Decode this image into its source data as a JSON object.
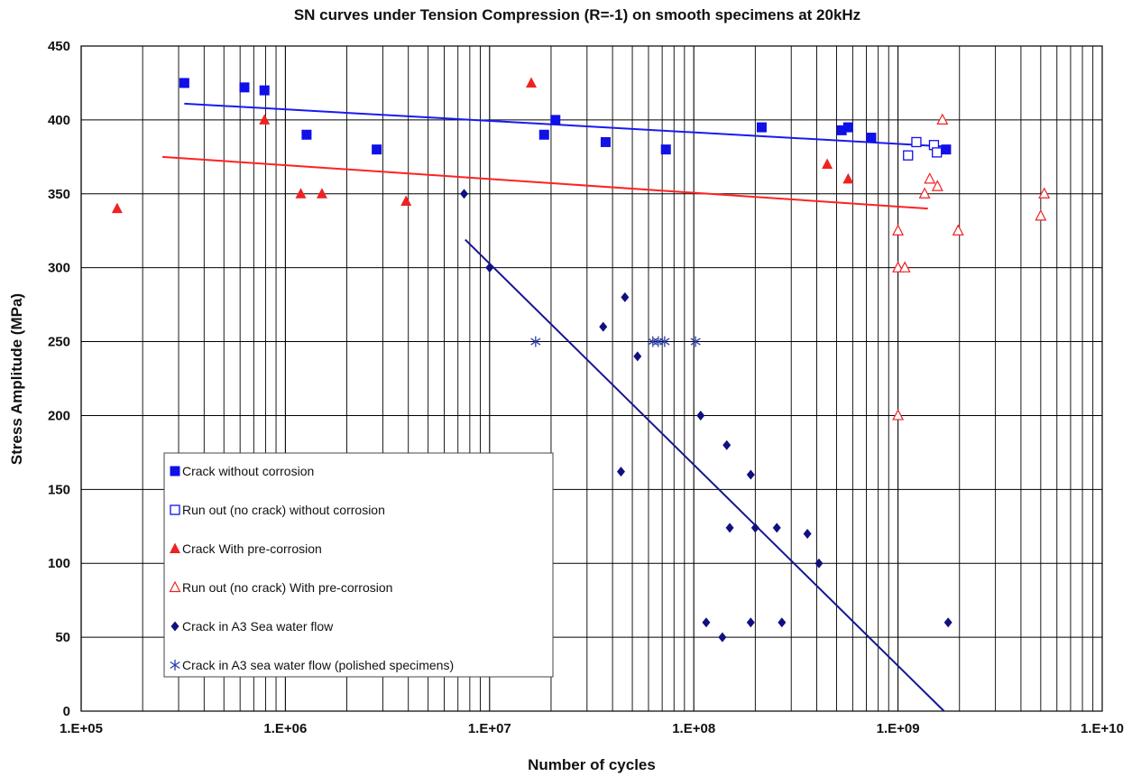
{
  "chart_data": {
    "type": "scatter",
    "title": "SN curves under Tension Compression (R=-1) on smooth specimens at 20kHz",
    "xlabel": "Number of cycles",
    "ylabel": "Stress Amplitude (MPa)",
    "x_scale": "log",
    "xlim": [
      100000,
      10000000000
    ],
    "ylim": [
      0,
      450
    ],
    "x_ticks": [
      "1.E+05",
      "1.E+06",
      "1.E+07",
      "1.E+08",
      "1.E+09",
      "1.E+10"
    ],
    "y_ticks": [
      "0",
      "50",
      "100",
      "150",
      "200",
      "250",
      "300",
      "350",
      "400",
      "450"
    ],
    "y_tick_values": [
      0,
      50,
      100,
      150,
      200,
      250,
      300,
      350,
      400,
      450
    ],
    "grid": true,
    "legend_position": "bottom-left",
    "series": [
      {
        "name": "Crack without corrosion",
        "marker": "square-filled",
        "color": "#1010e8",
        "points": [
          [
            320000,
            425
          ],
          [
            630000,
            422
          ],
          [
            790000,
            420
          ],
          [
            1270000,
            390
          ],
          [
            2800000,
            380
          ],
          [
            18500000,
            390
          ],
          [
            21000000,
            400
          ],
          [
            37000000,
            385
          ],
          [
            73000000,
            380
          ],
          [
            215000000,
            395
          ],
          [
            530000000,
            393
          ],
          [
            570000000,
            395
          ],
          [
            740000000,
            388
          ],
          [
            1720000000,
            380
          ]
        ]
      },
      {
        "name": "Run out (no crack) without corrosion",
        "marker": "square-open",
        "color": "#1010e8",
        "points": [
          [
            1120000000,
            376
          ],
          [
            1230000000,
            385
          ],
          [
            1500000000,
            383
          ],
          [
            1550000000,
            378
          ]
        ]
      },
      {
        "name": "Crack With pre-corrosion",
        "marker": "triangle-filled",
        "color": "#ee2222",
        "points": [
          [
            150000,
            340
          ],
          [
            790000,
            400
          ],
          [
            1190000,
            350
          ],
          [
            1510000,
            350
          ],
          [
            3900000,
            345
          ],
          [
            16000000,
            425
          ],
          [
            450000000,
            370
          ],
          [
            570000000,
            360
          ]
        ]
      },
      {
        "name": "Run out (no crack) With pre-corrosion",
        "marker": "triangle-open",
        "color": "#ee2222",
        "points": [
          [
            1000000000,
            325
          ],
          [
            1000000000,
            300
          ],
          [
            1080000000,
            300
          ],
          [
            1000000000,
            200
          ],
          [
            1350000000,
            350
          ],
          [
            1430000000,
            360
          ],
          [
            1560000000,
            355
          ],
          [
            1650000000,
            400
          ],
          [
            1970000000,
            325
          ],
          [
            5000000000,
            335
          ],
          [
            5200000000,
            350
          ]
        ]
      },
      {
        "name": "Crack in A3 Sea water flow",
        "marker": "diamond-filled",
        "color": "#101080",
        "points": [
          [
            7500000,
            350
          ],
          [
            10000000,
            300
          ],
          [
            36000000,
            260
          ],
          [
            46000000,
            280
          ],
          [
            53000000,
            240
          ],
          [
            44000000,
            162
          ],
          [
            108000000,
            200
          ],
          [
            145000000,
            180
          ],
          [
            190000000,
            160
          ],
          [
            150000000,
            124
          ],
          [
            200000000,
            124
          ],
          [
            255000000,
            124
          ],
          [
            360000000,
            120
          ],
          [
            410000000,
            100
          ],
          [
            115000000,
            60
          ],
          [
            138000000,
            50
          ],
          [
            190000000,
            60
          ],
          [
            270000000,
            60
          ],
          [
            1760000000,
            60
          ]
        ]
      },
      {
        "name": "Crack in A3 sea water flow (polished specimens)",
        "marker": "asterisk",
        "color": "#2b3fa8",
        "points": [
          [
            16800000,
            250
          ],
          [
            63000000,
            250
          ],
          [
            67000000,
            250
          ],
          [
            72000000,
            250
          ],
          [
            102000000,
            250
          ]
        ]
      }
    ],
    "trend_lines": [
      {
        "color": "#1a1af0",
        "points": [
          [
            320000,
            411
          ],
          [
            1700000000,
            382
          ]
        ]
      },
      {
        "color": "#ff2222",
        "points": [
          [
            250000,
            375
          ],
          [
            1400000000,
            340
          ]
        ]
      },
      {
        "color": "#141490",
        "points": [
          [
            7600000,
            319
          ],
          [
            1680000000,
            0
          ]
        ]
      }
    ]
  }
}
